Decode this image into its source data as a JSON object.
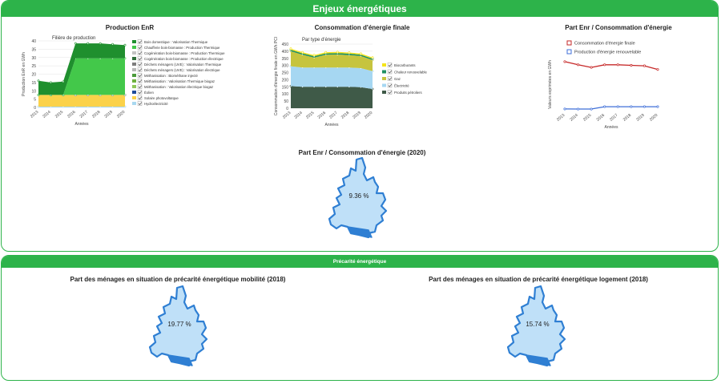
{
  "header": {
    "title": "Enjeux énergétiques"
  },
  "section2": {
    "title": "Précarité énergétique"
  },
  "colors": {
    "accent": "#2db34a",
    "map_fill": "#bfe0f8",
    "map_stroke": "#2f7fd3",
    "map_dark": "#2f7fd3"
  },
  "production": {
    "title": "Production EnR",
    "subtitle": "Filière de production",
    "chart_data": {
      "type": "area",
      "x": [
        "2013",
        "2014",
        "2015",
        "2016",
        "2017",
        "2018",
        "2019",
        "2020"
      ],
      "xlabel": "Années",
      "ylabel": "Production EnR en GWh",
      "ylim": [
        0,
        40
      ],
      "yticks": [
        "0",
        "5",
        "10",
        "15",
        "20",
        "25",
        "30",
        "35",
        "40"
      ],
      "series": [
        {
          "name": "Hydroélectricité",
          "color": "#a8d8f0",
          "values": [
            0.5,
            0.5,
            0.5,
            0.5,
            0.5,
            0.5,
            0.5,
            0.5
          ]
        },
        {
          "name": "Solaire photovoltaïque",
          "color": "#fbd24a",
          "values": [
            7,
            7,
            7,
            7,
            7,
            7,
            7,
            7
          ]
        },
        {
          "name": "Éolien",
          "color": "#1e4b9a",
          "values": [
            0,
            0,
            0,
            0,
            0,
            0,
            0,
            0
          ]
        },
        {
          "name": "Méthanisation : Valorisation électrique biogaz",
          "color": "#8fc75a",
          "values": [
            0,
            0,
            0,
            0,
            0,
            0,
            0,
            0
          ]
        },
        {
          "name": "Méthanisation : Valorisation Thermique biogaz",
          "color": "#6fb13f",
          "values": [
            0,
            0,
            0,
            0,
            0,
            0,
            0,
            0
          ]
        },
        {
          "name": "Méthanisation : Biométhane injecté",
          "color": "#4a9a3a",
          "values": [
            0,
            0,
            0,
            0,
            0,
            0,
            0,
            0
          ]
        },
        {
          "name": "Déchets ménagers (UVE) : Valorisation électrique",
          "color": "#b7b7b7",
          "values": [
            0,
            0,
            0,
            0,
            0,
            0,
            0,
            0
          ]
        },
        {
          "name": "Déchets ménagers (UVE) : Valorisation Thermique",
          "color": "#7d7d7d",
          "values": [
            0,
            0,
            0,
            0,
            0,
            0,
            0,
            0
          ]
        },
        {
          "name": "Cogénération bois-biomasse : Production électrique",
          "color": "#2f6e3a",
          "values": [
            0,
            0,
            0,
            0,
            0,
            0,
            0,
            0
          ]
        },
        {
          "name": "Cogénération bois-biomasse : Production Thermique",
          "color": "#c3c3c3",
          "values": [
            0,
            0,
            0,
            0,
            0,
            0,
            0,
            0
          ]
        },
        {
          "name": "Chaufferie bois-biomasse : Production Thermique",
          "color": "#43c84a",
          "values": [
            0,
            0,
            0,
            22,
            22,
            22,
            22,
            22
          ]
        },
        {
          "name": "Bois domestique : Valorisation Thermique",
          "color": "#1f8f2e",
          "values": [
            8.5,
            7.5,
            8,
            9,
            9,
            9,
            8.5,
            8
          ]
        }
      ]
    }
  },
  "consommation": {
    "title": "Consommation d'énergie finale",
    "subtitle": "Par type d'énergie",
    "chart_data": {
      "type": "area",
      "x": [
        "2013",
        "2014",
        "2015",
        "2016",
        "2017",
        "2018",
        "2019",
        "2020"
      ],
      "xlabel": "Années",
      "ylabel": "Consommation d'énergie finale en GWh PCI",
      "ylim": [
        0,
        450
      ],
      "yticks": [
        "0",
        "50",
        "100",
        "150",
        "200",
        "250",
        "300",
        "350",
        "400",
        "450"
      ],
      "series": [
        {
          "name": "Produits pétroliers",
          "color": "#3f5a48",
          "values": [
            155,
            150,
            150,
            150,
            150,
            150,
            148,
            135
          ]
        },
        {
          "name": "Électricité",
          "color": "#a6d7f2",
          "values": [
            140,
            135,
            135,
            135,
            135,
            135,
            133,
            125
          ]
        },
        {
          "name": "Gaz",
          "color": "#c6c43e",
          "values": [
            105,
            90,
            70,
            90,
            92,
            88,
            85,
            78
          ]
        },
        {
          "name": "Chaleur renouvelable",
          "color": "#1e8f63",
          "values": [
            10,
            10,
            10,
            10,
            10,
            10,
            10,
            10
          ]
        },
        {
          "name": "Biocarburants",
          "color": "#f5e41a",
          "values": [
            8,
            8,
            8,
            8,
            8,
            8,
            8,
            8
          ]
        }
      ]
    }
  },
  "part": {
    "title": "Part Enr / Consommation d'énergie",
    "chart_data": {
      "type": "line",
      "x": [
        "2013",
        "2014",
        "2015",
        "2016",
        "2017",
        "2018",
        "2019",
        "2020"
      ],
      "xlabel": "Années",
      "ylabel": "Valeurs exprimées en GWh",
      "ylim": [
        0,
        500
      ],
      "series": [
        {
          "name": "Consommation d'énergie finale",
          "color": "#c62828",
          "values": [
            470,
            440,
            415,
            440,
            440,
            435,
            430,
            395
          ]
        },
        {
          "name": "Production d'énergie renouvelable",
          "color": "#3f6fd8",
          "values": [
            16,
            15,
            15,
            38,
            38,
            38,
            38,
            38
          ]
        }
      ]
    }
  },
  "maps": {
    "enr": {
      "title": "Part Enr / Consommation d'énergie (2020)",
      "value": "9.36 %"
    },
    "mobilite": {
      "title": "Part des ménages en situation de précarité énergétique mobilité (2018)",
      "value": "19.77 %"
    },
    "logement": {
      "title": "Part des ménages en situation de précarité énergétique logement (2018)",
      "value": "15.74 %"
    }
  }
}
